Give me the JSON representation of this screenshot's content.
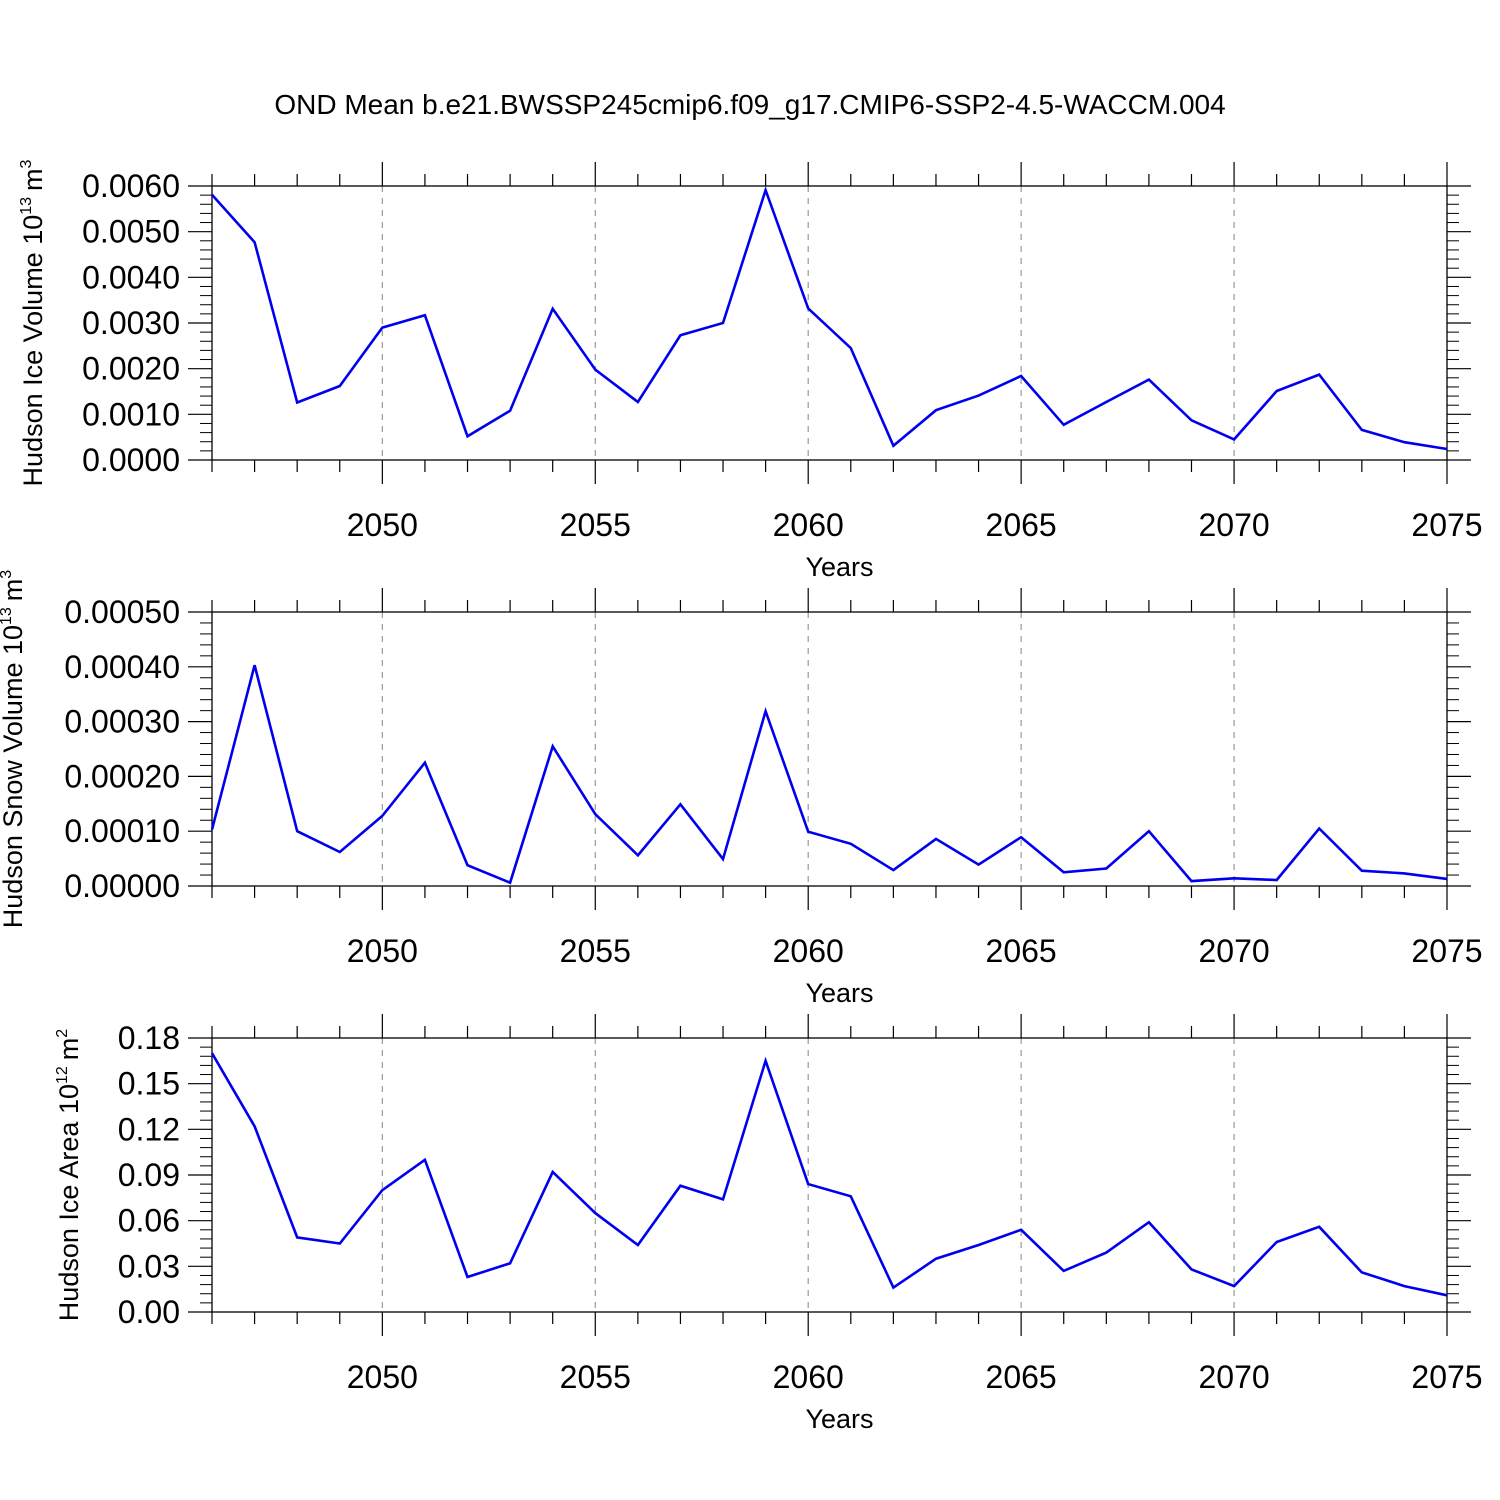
{
  "title": "OND Mean b.e21.BWSSP245cmip6.f09_g17.CMIP6-SSP2-4.5-WACCM.004",
  "chart_data": [
    {
      "type": "line",
      "title": "OND Mean b.e21.BWSSP245cmip6.f09_g17.CMIP6-SSP2-4.5-WACCM.004",
      "xlabel": "Years",
      "ylabel": {
        "text": "Hudson Ice Volume 10",
        "exp": "13",
        "unit": "m",
        "unit_exp": "3"
      },
      "xlim": [
        2046,
        2075
      ],
      "ylim": [
        0,
        0.006
      ],
      "xticks": [
        "2050",
        "2055",
        "2060",
        "2065",
        "2070",
        "2075"
      ],
      "yticks": [
        "0.0000",
        "0.0010",
        "0.0020",
        "0.0030",
        "0.0040",
        "0.0050",
        "0.0060"
      ],
      "grid": "vertical dashed at major x ticks",
      "line_color": "#0000ee",
      "x": [
        2046,
        2047,
        2048,
        2049,
        2050,
        2051,
        2052,
        2053,
        2054,
        2055,
        2056,
        2057,
        2058,
        2059,
        2060,
        2061,
        2062,
        2063,
        2064,
        2065,
        2066,
        2067,
        2068,
        2069,
        2070,
        2071,
        2072,
        2073,
        2074,
        2075
      ],
      "values": [
        0.00581,
        0.00477,
        0.00126,
        0.00162,
        0.0029,
        0.00317,
        0.00052,
        0.00108,
        0.00331,
        0.00198,
        0.00127,
        0.00273,
        0.003,
        0.00591,
        0.00332,
        0.00245,
        0.00031,
        0.00109,
        0.00141,
        0.00184,
        0.00077,
        0.00127,
        0.00176,
        0.00087,
        0.00045,
        0.00151,
        0.00187,
        0.00066,
        0.00039,
        0.00024
      ]
    },
    {
      "type": "line",
      "xlabel": "Years",
      "ylabel": {
        "text": "Hudson Snow Volume 10",
        "exp": "13",
        "unit": "m",
        "unit_exp": "3"
      },
      "xlim": [
        2046,
        2075
      ],
      "ylim": [
        0,
        0.0005
      ],
      "xticks": [
        "2050",
        "2055",
        "2060",
        "2065",
        "2070",
        "2075"
      ],
      "yticks": [
        "0.00000",
        "0.00010",
        "0.00020",
        "0.00030",
        "0.00040",
        "0.00050"
      ],
      "grid": "vertical dashed at major x ticks",
      "line_color": "#0000ee",
      "x": [
        2046,
        2047,
        2048,
        2049,
        2050,
        2051,
        2052,
        2053,
        2054,
        2055,
        2056,
        2057,
        2058,
        2059,
        2060,
        2061,
        2062,
        2063,
        2064,
        2065,
        2066,
        2067,
        2068,
        2069,
        2070,
        2071,
        2072,
        2073,
        2074,
        2075
      ],
      "values": [
        0.000103,
        0.000403,
        0.0001,
        6.2e-05,
        0.000128,
        0.000225,
        3.8e-05,
        6e-06,
        0.000255,
        0.000131,
        5.6e-05,
        0.000149,
        4.9e-05,
        0.000319,
        9.9e-05,
        7.7e-05,
        2.9e-05,
        8.6e-05,
        3.9e-05,
        8.9e-05,
        2.5e-05,
        3.2e-05,
        0.0001,
        9e-06,
        1.4e-05,
        1.1e-05,
        0.000105,
        2.8e-05,
        2.3e-05,
        1.3e-05
      ]
    },
    {
      "type": "line",
      "xlabel": "Years",
      "ylabel": {
        "text": "Hudson Ice Area 10",
        "exp": "12",
        "unit": "m",
        "unit_exp": "2"
      },
      "xlim": [
        2046,
        2075
      ],
      "ylim": [
        0,
        0.18
      ],
      "xticks": [
        "2050",
        "2055",
        "2060",
        "2065",
        "2070",
        "2075"
      ],
      "yticks": [
        "0.00",
        "0.03",
        "0.06",
        "0.09",
        "0.12",
        "0.15",
        "0.18"
      ],
      "grid": "vertical dashed at major x ticks",
      "line_color": "#0000ee",
      "x": [
        2046,
        2047,
        2048,
        2049,
        2050,
        2051,
        2052,
        2053,
        2054,
        2055,
        2056,
        2057,
        2058,
        2059,
        2060,
        2061,
        2062,
        2063,
        2064,
        2065,
        2066,
        2067,
        2068,
        2069,
        2070,
        2071,
        2072,
        2073,
        2074,
        2075
      ],
      "values": [
        0.17,
        0.122,
        0.049,
        0.045,
        0.08,
        0.1,
        0.023,
        0.032,
        0.092,
        0.065,
        0.044,
        0.083,
        0.074,
        0.165,
        0.084,
        0.076,
        0.016,
        0.035,
        0.044,
        0.054,
        0.027,
        0.039,
        0.059,
        0.028,
        0.017,
        0.046,
        0.056,
        0.026,
        0.017,
        0.011
      ]
    }
  ]
}
